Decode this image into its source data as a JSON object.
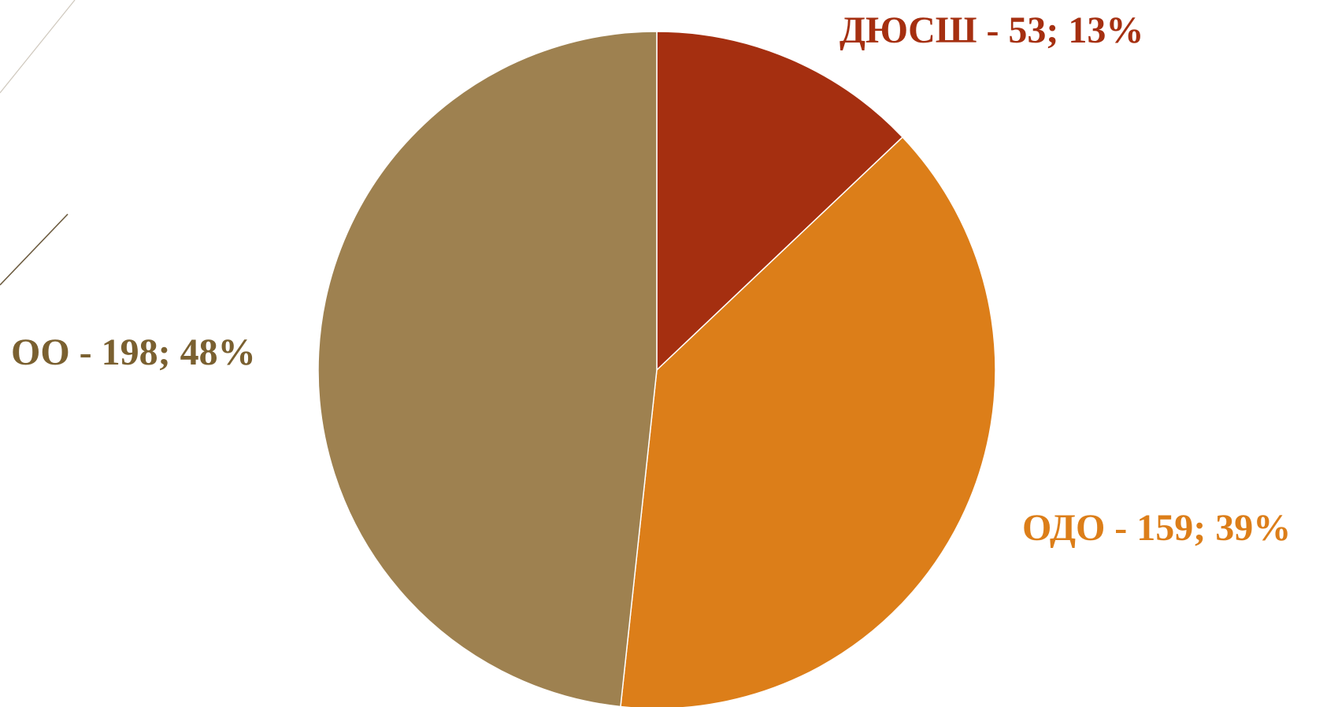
{
  "chart_data": {
    "type": "pie",
    "title": "",
    "start_angle_deg": 0,
    "direction": "clockwise",
    "slices": [
      {
        "label": "ДЮСШ  - 53; 13%",
        "category": "ДЮСШ",
        "value": 53,
        "percent": 13,
        "color": "#a52f10"
      },
      {
        "label": "ОДО  - 159; 39%",
        "category": "ОДО",
        "value": 159,
        "percent": 39,
        "color": "#dc7e19"
      },
      {
        "label": "ОО  - 198; 48%",
        "category": "ОО",
        "value": 198,
        "percent": 48,
        "color": "#9e8150"
      }
    ],
    "label_colors": [
      "#a52f10",
      "#dc7e19",
      "#7a6030"
    ],
    "legend": "none"
  }
}
